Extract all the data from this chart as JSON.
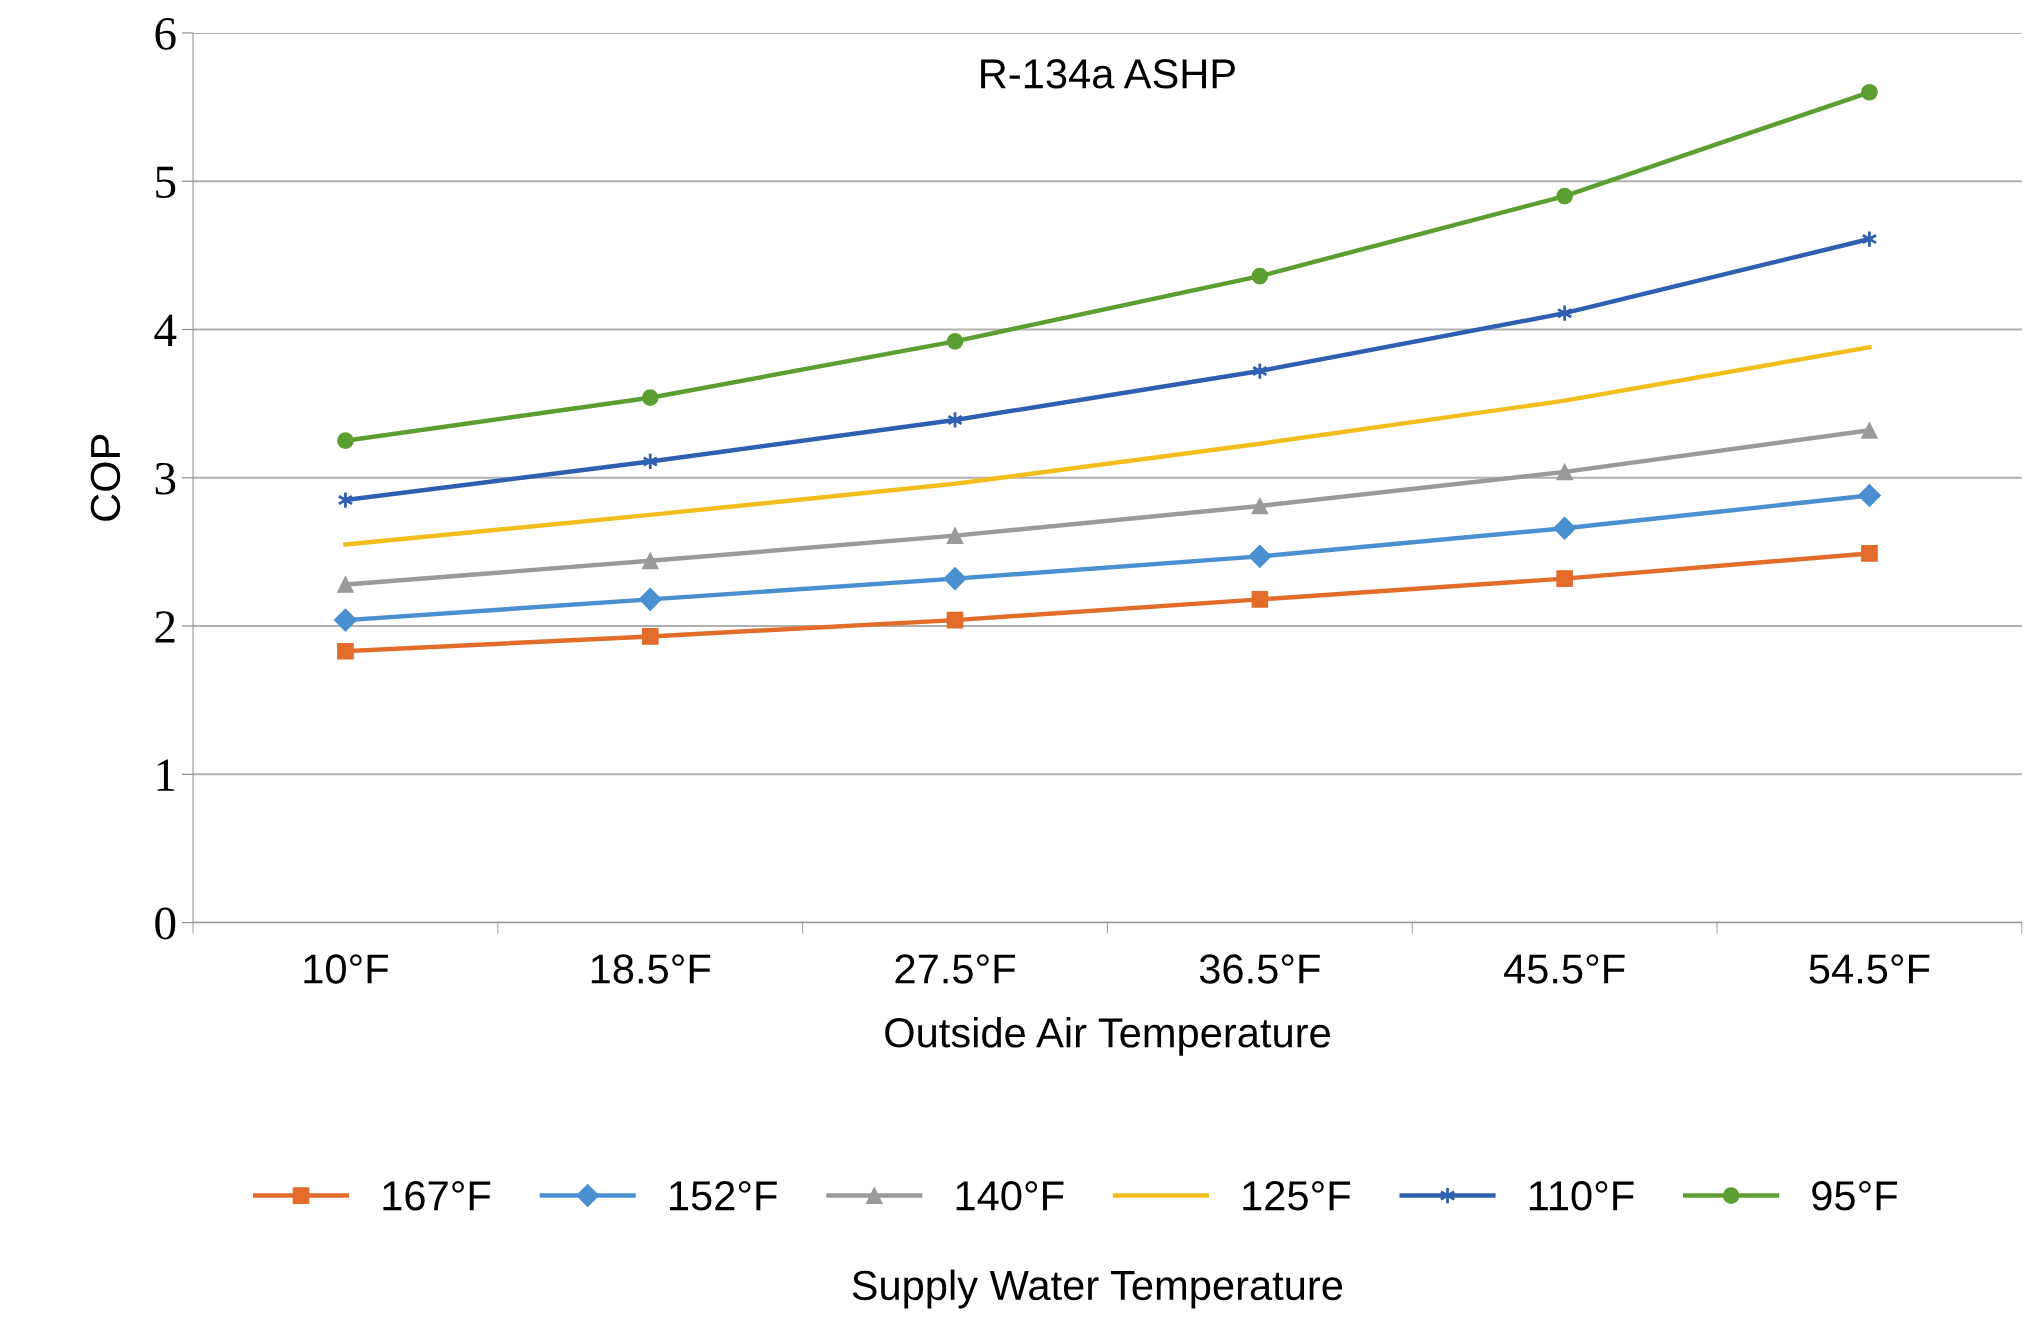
{
  "chart_data": {
    "type": "line",
    "title": "R-134a ASHP",
    "xlabel": "Outside Air Temperature",
    "ylabel": "COP",
    "legend_title": "Supply Water Temperature",
    "categories": [
      "10°F",
      "18.5°F",
      "27.5°F",
      "36.5°F",
      "45.5°F",
      "54.5°F"
    ],
    "series": [
      {
        "name": "167°F",
        "color": "#e36c2a",
        "marker": "square",
        "values": [
          1.83,
          1.93,
          2.04,
          2.18,
          2.32,
          2.49
        ]
      },
      {
        "name": "152°F",
        "color": "#4a8fd0",
        "marker": "diamond",
        "values": [
          2.04,
          2.18,
          2.32,
          2.47,
          2.66,
          2.88
        ]
      },
      {
        "name": "140°F",
        "color": "#9a9a9a",
        "marker": "triangle",
        "values": [
          2.28,
          2.44,
          2.61,
          2.81,
          3.04,
          3.32
        ]
      },
      {
        "name": "125°F",
        "color": "#f2be1e",
        "marker": "none",
        "values": [
          2.55,
          2.75,
          2.96,
          3.23,
          3.52,
          3.88
        ]
      },
      {
        "name": "110°F",
        "color": "#2e5fb0",
        "marker": "cross",
        "values": [
          2.85,
          3.11,
          3.39,
          3.72,
          4.11,
          4.61
        ]
      },
      {
        "name": "95°F",
        "color": "#5c9e32",
        "marker": "circle",
        "values": [
          3.25,
          3.54,
          3.92,
          4.36,
          4.9,
          5.6
        ]
      }
    ],
    "ylim": [
      0,
      6
    ],
    "yticks": [
      0,
      1,
      2,
      3,
      4,
      5,
      6
    ],
    "grid": "y",
    "legend": "bottom"
  }
}
